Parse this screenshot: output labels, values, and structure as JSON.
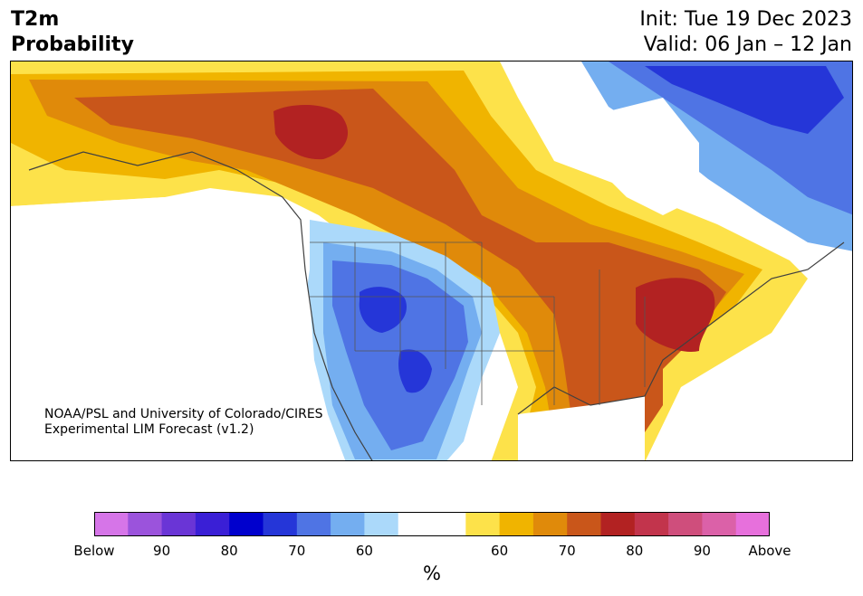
{
  "title": {
    "line1": "T2m",
    "line2": "Probability"
  },
  "forecast": {
    "init": "Init: Tue 19 Dec 2023",
    "valid": "Valid: 06 Jan – 12 Jan"
  },
  "credit": {
    "line1": "NOAA/PSL and University of Colorado/CIRES",
    "line2": "Experimental LIM Forecast (v1.2)"
  },
  "colorbar": {
    "unit": "%",
    "colors": [
      "#d675e8",
      "#9b53dc",
      "#6a35d6",
      "#3a1fd6",
      "#0000cd",
      "#2536d8",
      "#4f74e4",
      "#74aef0",
      "#abd9fa",
      "#ffffff",
      "#ffffff",
      "#fde24a",
      "#f0b400",
      "#e08a0a",
      "#c9561a",
      "#b22222",
      "#c2344c",
      "#cf4e7c",
      "#db61a8",
      "#e770dc"
    ],
    "ticks": [
      "Below",
      "90",
      "80",
      "70",
      "60",
      "60",
      "70",
      "80",
      "90",
      "Above"
    ]
  },
  "legend_categories": {
    "below": [
      "#74aef0",
      "#4f74e4",
      "#2536d8"
    ],
    "above": [
      "#fde24a",
      "#f0b400",
      "#e08a0a",
      "#c9561a",
      "#b22222"
    ]
  }
}
